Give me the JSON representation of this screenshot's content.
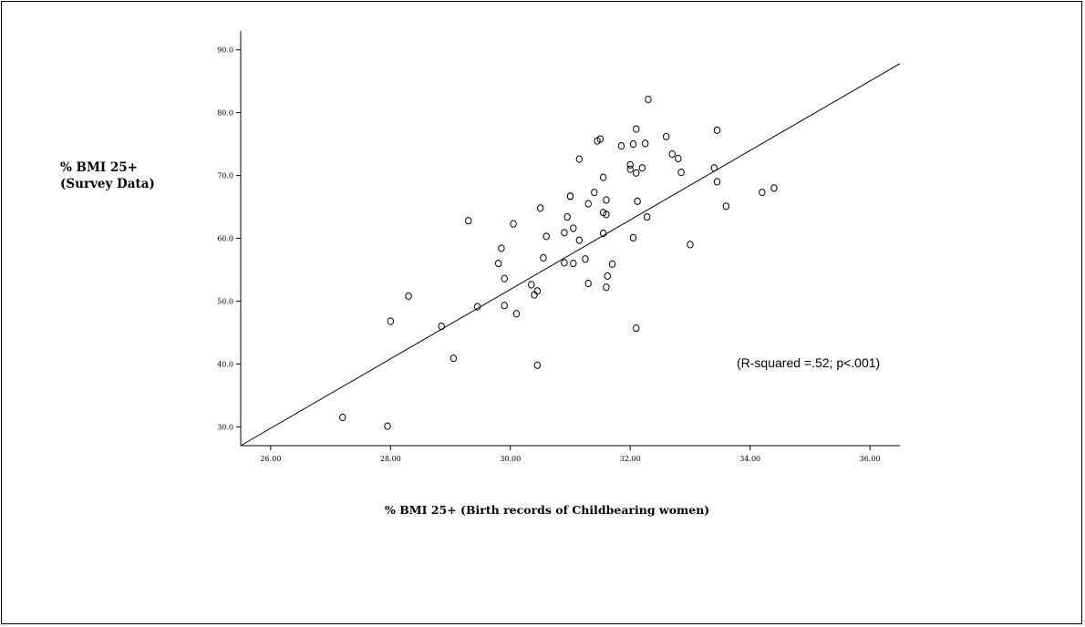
{
  "chart_data": {
    "type": "scatter",
    "title": "",
    "ylabel": [
      "% BMI 25+",
      "(Survey Data)"
    ],
    "xlabel": "% BMI 25+  (Birth records of Childbearing women)",
    "annotation": "(R-squared =.52; p<.001)",
    "xlim": [
      25.5,
      36.5
    ],
    "ylim": [
      27,
      93
    ],
    "xticks": [
      26,
      28,
      30,
      32,
      34,
      36
    ],
    "xtick_labels": [
      "26.00",
      "28.00",
      "30.00",
      "32.00",
      "34.00",
      "36.00"
    ],
    "yticks": [
      30,
      40,
      50,
      60,
      70,
      80,
      90
    ],
    "ytick_labels": [
      "30.0",
      "40.0",
      "50.0",
      "60.0",
      "70.0",
      "80.0",
      "90.0"
    ],
    "grid": false,
    "fit_line": {
      "x1": 25.5,
      "y1": 27.0,
      "x2": 36.5,
      "y2": 87.8
    },
    "points": [
      [
        27.2,
        31.5
      ],
      [
        28.0,
        46.8
      ],
      [
        27.95,
        30.1
      ],
      [
        28.3,
        50.8
      ],
      [
        28.85,
        46.0
      ],
      [
        29.05,
        40.9
      ],
      [
        29.3,
        62.8
      ],
      [
        29.45,
        49.1
      ],
      [
        29.8,
        56.0
      ],
      [
        29.85,
        58.4
      ],
      [
        29.9,
        53.6
      ],
      [
        29.9,
        49.3
      ],
      [
        30.05,
        62.3
      ],
      [
        30.1,
        48.0
      ],
      [
        30.35,
        52.6
      ],
      [
        30.4,
        51.0
      ],
      [
        30.45,
        51.6
      ],
      [
        30.45,
        39.8
      ],
      [
        30.5,
        64.8
      ],
      [
        30.55,
        56.9
      ],
      [
        30.6,
        60.3
      ],
      [
        30.9,
        60.9
      ],
      [
        30.9,
        56.1
      ],
      [
        30.95,
        63.4
      ],
      [
        31.0,
        66.7
      ],
      [
        31.0,
        66.7
      ],
      [
        31.05,
        61.6
      ],
      [
        31.05,
        56.0
      ],
      [
        31.15,
        72.6
      ],
      [
        31.15,
        59.7
      ],
      [
        31.25,
        56.7
      ],
      [
        31.3,
        65.5
      ],
      [
        31.3,
        52.8
      ],
      [
        31.4,
        67.3
      ],
      [
        31.45,
        75.5
      ],
      [
        31.5,
        75.8
      ],
      [
        31.55,
        69.7
      ],
      [
        31.55,
        64.1
      ],
      [
        31.55,
        60.8
      ],
      [
        31.6,
        66.1
      ],
      [
        31.6,
        63.8
      ],
      [
        31.62,
        54.0
      ],
      [
        31.6,
        52.2
      ],
      [
        31.7,
        55.9
      ],
      [
        31.85,
        74.7
      ],
      [
        32.0,
        71.7
      ],
      [
        32.0,
        71.0
      ],
      [
        32.05,
        75.0
      ],
      [
        32.05,
        60.1
      ],
      [
        32.1,
        77.4
      ],
      [
        32.1,
        70.4
      ],
      [
        32.12,
        65.9
      ],
      [
        32.1,
        45.7
      ],
      [
        32.2,
        71.2
      ],
      [
        32.25,
        75.1
      ],
      [
        32.3,
        82.1
      ],
      [
        32.28,
        63.4
      ],
      [
        32.6,
        76.2
      ],
      [
        32.7,
        73.4
      ],
      [
        32.8,
        72.7
      ],
      [
        32.85,
        70.5
      ],
      [
        33.0,
        59.0
      ],
      [
        33.4,
        71.2
      ],
      [
        33.45,
        77.2
      ],
      [
        33.45,
        69.0
      ],
      [
        33.6,
        65.1
      ],
      [
        34.2,
        67.3
      ],
      [
        34.4,
        68.0
      ]
    ]
  }
}
